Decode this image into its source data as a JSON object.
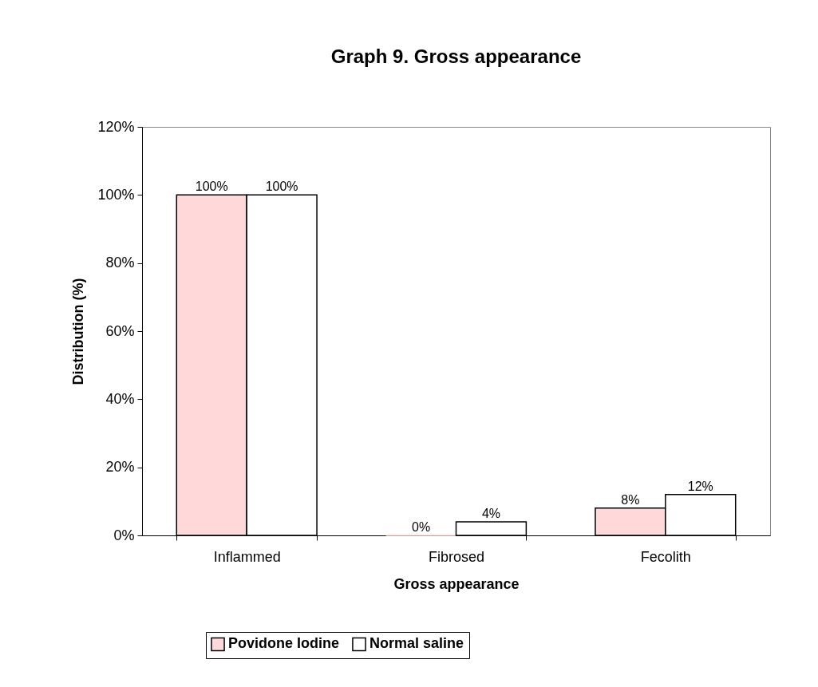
{
  "chart_data": {
    "type": "bar",
    "title": "Graph 9. Gross appearance",
    "xlabel": "Gross appearance",
    "ylabel": "Distribution (%)",
    "categories": [
      "Inflammed",
      "Fibrosed",
      "Fecolith"
    ],
    "series": [
      {
        "name": "Povidone Iodine",
        "color": "#ffd9d9",
        "values": [
          100,
          0,
          8
        ],
        "value_labels": [
          "100%",
          "0%",
          "8%"
        ]
      },
      {
        "name": "Normal saline",
        "color": "#ffffff",
        "values": [
          100,
          4,
          12
        ],
        "value_labels": [
          "100%",
          "4%",
          "12%"
        ]
      }
    ],
    "ylim": [
      0,
      120
    ],
    "yticks": [
      {
        "value": 0,
        "label": "0%"
      },
      {
        "value": 20,
        "label": "20%"
      },
      {
        "value": 40,
        "label": "40%"
      },
      {
        "value": 60,
        "label": "60%"
      },
      {
        "value": 80,
        "label": "80%"
      },
      {
        "value": 100,
        "label": "100%"
      },
      {
        "value": 120,
        "label": "120%"
      }
    ],
    "grid": false,
    "legend": "bottom"
  }
}
